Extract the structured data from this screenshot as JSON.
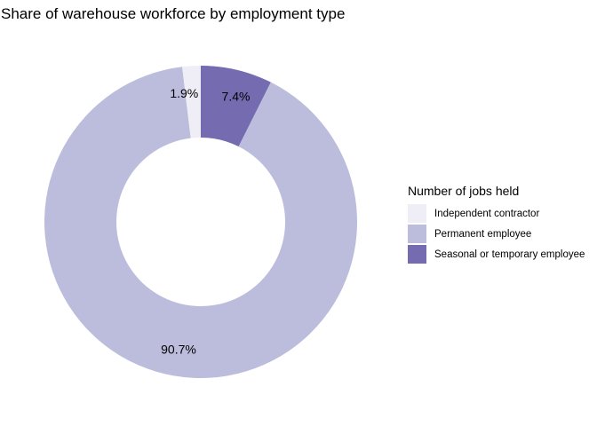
{
  "chart_data": {
    "type": "pie",
    "style": "donut",
    "title": "Share of warehouse workforce by employment type",
    "legend_title": "Number of jobs held",
    "legend_position": "right",
    "categories": [
      "Independent contractor",
      "Permanent employee",
      "Seasonal or temporary employee"
    ],
    "values": [
      1.9,
      90.7,
      7.4
    ],
    "labels": [
      "1.9%",
      "90.7%",
      "7.4%"
    ],
    "colors": [
      "#efedf5",
      "#bcbddc",
      "#756bb1"
    ]
  }
}
